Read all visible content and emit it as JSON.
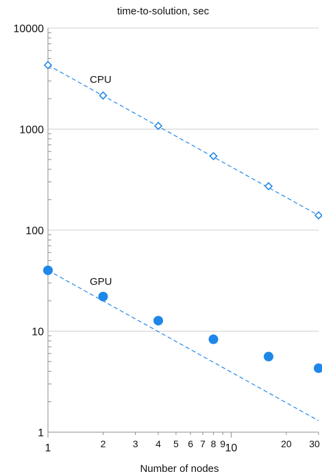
{
  "chart_data": {
    "type": "scatter",
    "title": "time-to-solution, sec",
    "xlabel": "Number of nodes",
    "ylabel": "",
    "xscale": "log",
    "yscale": "log",
    "xlim": [
      1,
      30
    ],
    "ylim": [
      1,
      10000
    ],
    "x_ticks_major": [
      1,
      10
    ],
    "x_ticks_minor": [
      2,
      3,
      4,
      5,
      6,
      7,
      8,
      9,
      20,
      30
    ],
    "y_ticks": [
      1,
      10,
      100,
      1000,
      10000
    ],
    "grid": "horizontal",
    "legend": "none",
    "series": [
      {
        "name": "CPU",
        "marker": "open-diamond",
        "color": "#1f87e8",
        "x": [
          1,
          2,
          4,
          8,
          16,
          30
        ],
        "y": [
          4300,
          2150,
          1075,
          540,
          272,
          140
        ],
        "trend": {
          "x": [
            1,
            30
          ],
          "y": [
            4300,
            140
          ]
        }
      },
      {
        "name": "GPU",
        "marker": "filled-circle",
        "color": "#1f87e8",
        "x": [
          1,
          2,
          4,
          8,
          16,
          30
        ],
        "y": [
          40,
          22,
          12.7,
          8.3,
          5.6,
          4.3
        ],
        "trend": {
          "x": [
            1,
            30
          ],
          "y": [
            40,
            1.3
          ]
        }
      }
    ]
  }
}
